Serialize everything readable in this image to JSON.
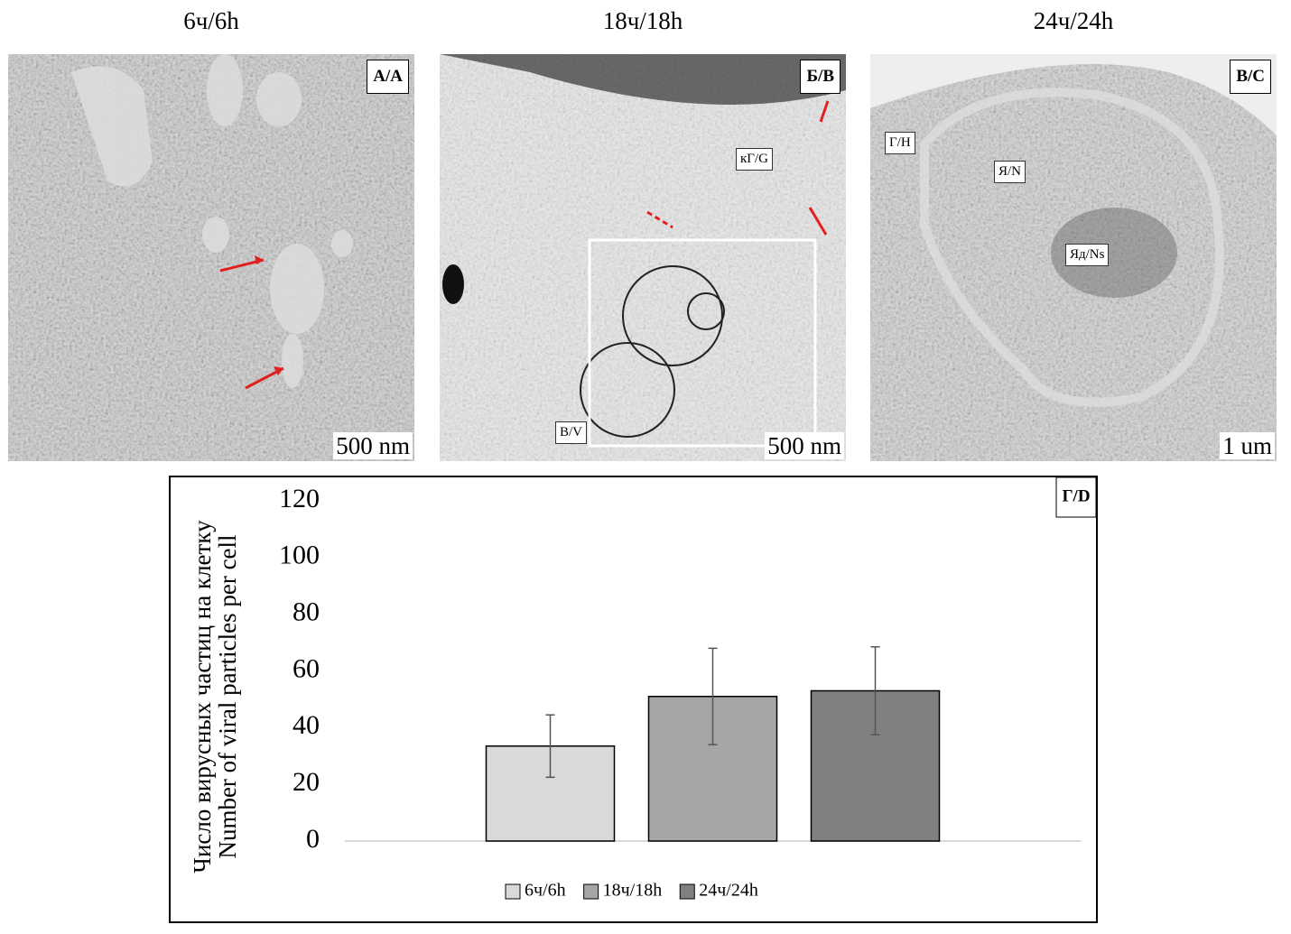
{
  "panels": [
    {
      "title": "6ч/6h",
      "label": "А/A",
      "scale": "500 nm",
      "annotations": []
    },
    {
      "title": "18ч/18h",
      "label": "Б/B",
      "scale": "500 nm",
      "annotations": [
        "кГ/G",
        "В/V"
      ]
    },
    {
      "title": "24ч/24h",
      "label": "В/C",
      "scale": "1 um",
      "annotations": [
        "Г/H",
        "Я/N",
        "Яд/Ns"
      ]
    }
  ],
  "chart_data": {
    "type": "bar",
    "label": "Г/D",
    "ylabel": [
      "Число вирусных частиц на клетку",
      "Number of viral particles per cell"
    ],
    "categories": [
      null
    ],
    "series": [
      {
        "name": "6ч/6h",
        "color": "#d9d9d9",
        "values": [
          33.5
        ],
        "errors": [
          11
        ]
      },
      {
        "name": "18ч/18h",
        "color": "#a6a6a6",
        "values": [
          51
        ],
        "errors": [
          17
        ]
      },
      {
        "name": "24ч/24h",
        "color": "#808080",
        "values": [
          53
        ],
        "errors": [
          15.5
        ]
      }
    ],
    "ylim": [
      0,
      120
    ],
    "yticks": [
      0,
      20,
      40,
      60,
      80,
      100,
      120
    ],
    "legend": "bottom"
  }
}
